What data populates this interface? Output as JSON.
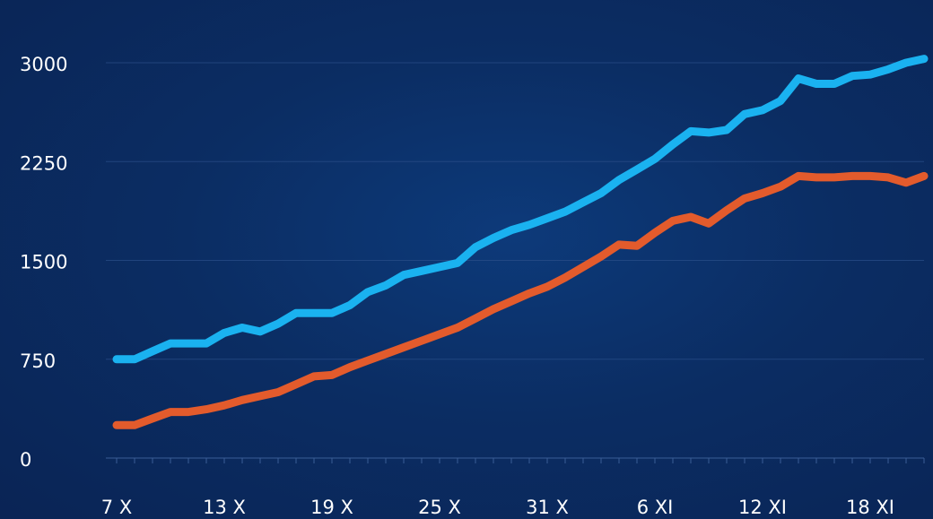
{
  "chart_data": {
    "type": "line",
    "title": "",
    "xlabel": "",
    "ylabel": "",
    "ylim": [
      0,
      3000
    ],
    "grid": true,
    "y_ticks": [
      "0",
      "750",
      "1500",
      "2250",
      "3000"
    ],
    "x_tick_labels": [
      "7 X",
      "13 X",
      "19 X",
      "25 X",
      "31 X",
      "6 XI",
      "12 XI",
      "18 XI"
    ],
    "x_tick_days": [
      0,
      6,
      12,
      18,
      24,
      30,
      36,
      42
    ],
    "x_days": [
      0,
      1,
      2,
      3,
      4,
      5,
      6,
      7,
      8,
      9,
      10,
      11,
      12,
      13,
      14,
      15,
      16,
      17,
      18,
      19,
      20,
      21,
      22,
      23,
      24,
      25,
      26,
      27,
      28,
      29,
      30,
      31,
      32,
      33,
      34,
      35,
      36,
      37,
      38,
      39,
      40,
      41,
      42,
      43,
      44,
      45
    ],
    "series": [
      {
        "color": "#1ab2f0",
        "values": [
          750,
          750,
          810,
          870,
          870,
          870,
          950,
          990,
          960,
          1020,
          1100,
          1100,
          1100,
          1160,
          1260,
          1310,
          1390,
          1420,
          1450,
          1480,
          1600,
          1670,
          1730,
          1770,
          1820,
          1870,
          1940,
          2010,
          2110,
          2190,
          2270,
          2380,
          2480,
          2470,
          2490,
          2610,
          2640,
          2710,
          2880,
          2840,
          2840,
          2900,
          2910,
          2950,
          3000,
          3030
        ]
      },
      {
        "color": "#e35b2c",
        "values": [
          250,
          250,
          300,
          350,
          350,
          370,
          400,
          440,
          470,
          500,
          560,
          620,
          630,
          690,
          740,
          790,
          840,
          890,
          940,
          990,
          1060,
          1130,
          1190,
          1250,
          1300,
          1370,
          1450,
          1530,
          1620,
          1610,
          1710,
          1800,
          1830,
          1780,
          1880,
          1970,
          2010,
          2060,
          2140,
          2130,
          2130,
          2140,
          2140,
          2130,
          2090,
          2140
        ]
      }
    ]
  }
}
